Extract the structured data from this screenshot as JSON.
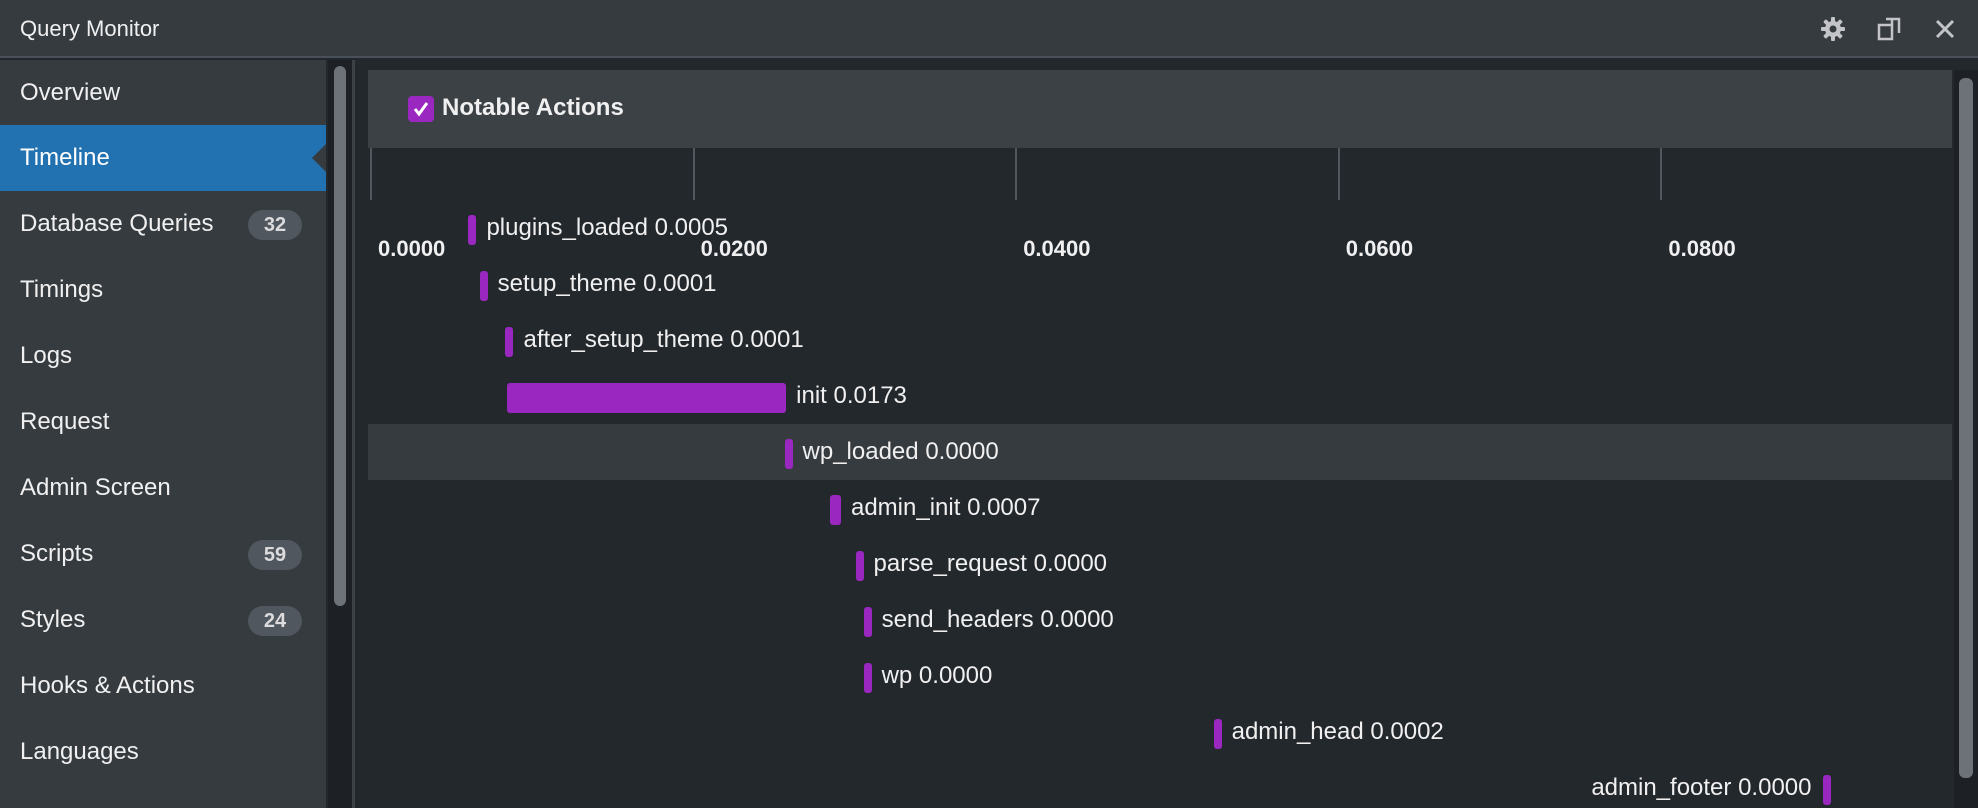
{
  "window": {
    "title": "Query Monitor",
    "icons": [
      "gear-icon",
      "dock-toggle-icon",
      "close-icon"
    ]
  },
  "sidebar": {
    "items": [
      {
        "label": "Overview",
        "badge": null,
        "active": false
      },
      {
        "label": "Timeline",
        "badge": null,
        "active": true
      },
      {
        "label": "Database Queries",
        "badge": "32",
        "active": false
      },
      {
        "label": "Timings",
        "badge": null,
        "active": false
      },
      {
        "label": "Logs",
        "badge": null,
        "active": false
      },
      {
        "label": "Request",
        "badge": null,
        "active": false
      },
      {
        "label": "Admin Screen",
        "badge": null,
        "active": false
      },
      {
        "label": "Scripts",
        "badge": "59",
        "active": false
      },
      {
        "label": "Styles",
        "badge": "24",
        "active": false
      },
      {
        "label": "Hooks & Actions",
        "badge": null,
        "active": false
      },
      {
        "label": "Languages",
        "badge": null,
        "active": false
      }
    ]
  },
  "timeline": {
    "filter_label": "Notable Actions",
    "filter_checked": true,
    "axis_ticks": [
      "0.0000",
      "0.0200",
      "0.0400",
      "0.0600",
      "0.0800"
    ],
    "actions": [
      {
        "name": "plugins_loaded",
        "duration": "0.0005",
        "start": 0.0061
      },
      {
        "name": "setup_theme",
        "duration": "0.0001",
        "start": 0.0068
      },
      {
        "name": "after_setup_theme",
        "duration": "0.0001",
        "start": 0.0084
      },
      {
        "name": "init",
        "duration": "0.0173",
        "start": 0.0085
      },
      {
        "name": "wp_loaded",
        "duration": "0.0000",
        "start": 0.0257
      },
      {
        "name": "admin_init",
        "duration": "0.0007",
        "start": 0.0285
      },
      {
        "name": "parse_request",
        "duration": "0.0000",
        "start": 0.0301
      },
      {
        "name": "send_headers",
        "duration": "0.0000",
        "start": 0.0306
      },
      {
        "name": "wp",
        "duration": "0.0000",
        "start": 0.0306
      },
      {
        "name": "admin_head",
        "duration": "0.0002",
        "start": 0.0523
      },
      {
        "name": "admin_footer",
        "duration": "0.0000",
        "start": 0.0901
      }
    ],
    "highlighted_action": "wp_loaded",
    "bar_color": "#9a28c0",
    "accent_color": "#2271b1"
  }
}
